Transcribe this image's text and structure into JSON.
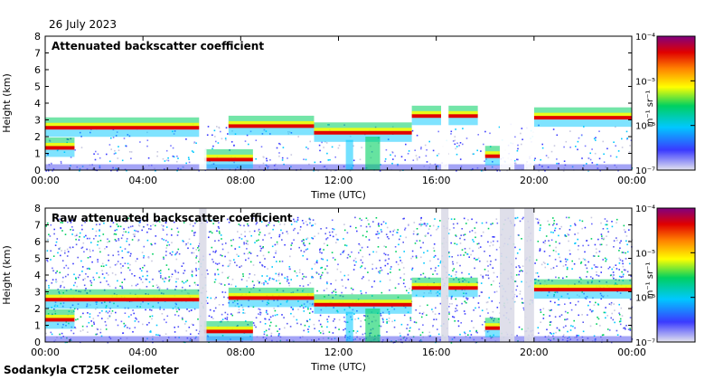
{
  "date": "26 July 2023",
  "footer": "Sodankyla CT25K ceilometer",
  "colors": {
    "axis": "#000000",
    "background": "#ffffff"
  },
  "chart_data": [
    {
      "type": "heatmap",
      "title": "Attenuated backscatter coefficient",
      "xlabel": "Time (UTC)",
      "ylabel": "Height (km)",
      "xticks": [
        "00:00",
        "04:00",
        "08:00",
        "12:00",
        "16:00",
        "20:00",
        "00:00"
      ],
      "yticks": [
        "0",
        "1",
        "2",
        "3",
        "4",
        "5",
        "6",
        "7",
        "8"
      ],
      "xlim_hours": [
        0,
        24
      ],
      "ylim_km": [
        0,
        8
      ],
      "colorbar": {
        "label": "m⁻¹ sr⁻¹",
        "ticks": [
          "10⁻⁴",
          "10⁻⁵",
          "10⁻⁶",
          "10⁻⁷"
        ],
        "scale": "log",
        "range": [
          "1e-7",
          "1e-4"
        ]
      },
      "layers": [
        {
          "name": "cloud layer",
          "t_start": 0.0,
          "t_end": 6.3,
          "height_km": 2.5
        },
        {
          "name": "cloud layer",
          "t_start": 7.5,
          "t_end": 11.0,
          "height_km": 2.6
        },
        {
          "name": "cloud layer",
          "t_start": 11.0,
          "t_end": 15.0,
          "height_km": 2.2
        },
        {
          "name": "cloud layer",
          "t_start": 15.0,
          "t_end": 16.2,
          "height_km": 3.2
        },
        {
          "name": "cloud layer",
          "t_start": 16.5,
          "t_end": 17.7,
          "height_km": 3.2
        },
        {
          "name": "cloud layer",
          "t_start": 18.0,
          "t_end": 18.6,
          "height_km": 0.8
        },
        {
          "name": "cloud layer",
          "t_start": 20.0,
          "t_end": 24.0,
          "height_km": 3.1
        },
        {
          "name": "low layer",
          "t_start": 0.0,
          "t_end": 1.2,
          "height_km": 1.3
        },
        {
          "name": "low layer",
          "t_start": 6.5,
          "t_end": 8.5,
          "height_km": 0.6
        }
      ]
    },
    {
      "type": "heatmap",
      "title": "Raw attenuated backscatter coefficient",
      "xlabel": "Time (UTC)",
      "ylabel": "Height (km)",
      "xticks": [
        "00:00",
        "04:00",
        "08:00",
        "12:00",
        "16:00",
        "20:00",
        "00:00"
      ],
      "yticks": [
        "0",
        "1",
        "2",
        "3",
        "4",
        "5",
        "6",
        "7",
        "8"
      ],
      "xlim_hours": [
        0,
        24
      ],
      "ylim_km": [
        0,
        8
      ],
      "colorbar": {
        "label": "m⁻¹ sr⁻¹",
        "ticks": [
          "10⁻⁴",
          "10⁻⁵",
          "10⁻⁶",
          "10⁻⁷"
        ],
        "scale": "log",
        "range": [
          "1e-7",
          "1e-4"
        ]
      },
      "layers": [
        {
          "name": "cloud layer",
          "t_start": 0.0,
          "t_end": 6.3,
          "height_km": 2.5
        },
        {
          "name": "cloud layer",
          "t_start": 7.5,
          "t_end": 11.0,
          "height_km": 2.6
        },
        {
          "name": "cloud layer",
          "t_start": 11.0,
          "t_end": 15.0,
          "height_km": 2.2
        },
        {
          "name": "cloud layer",
          "t_start": 15.0,
          "t_end": 16.2,
          "height_km": 3.2
        },
        {
          "name": "cloud layer",
          "t_start": 16.5,
          "t_end": 17.7,
          "height_km": 3.2
        },
        {
          "name": "cloud layer",
          "t_start": 18.0,
          "t_end": 18.6,
          "height_km": 0.8
        },
        {
          "name": "cloud layer",
          "t_start": 20.0,
          "t_end": 24.0,
          "height_km": 3.1
        },
        {
          "name": "low layer",
          "t_start": 0.0,
          "t_end": 1.2,
          "height_km": 1.3
        },
        {
          "name": "low layer",
          "t_start": 6.5,
          "t_end": 8.5,
          "height_km": 0.6
        }
      ]
    }
  ]
}
